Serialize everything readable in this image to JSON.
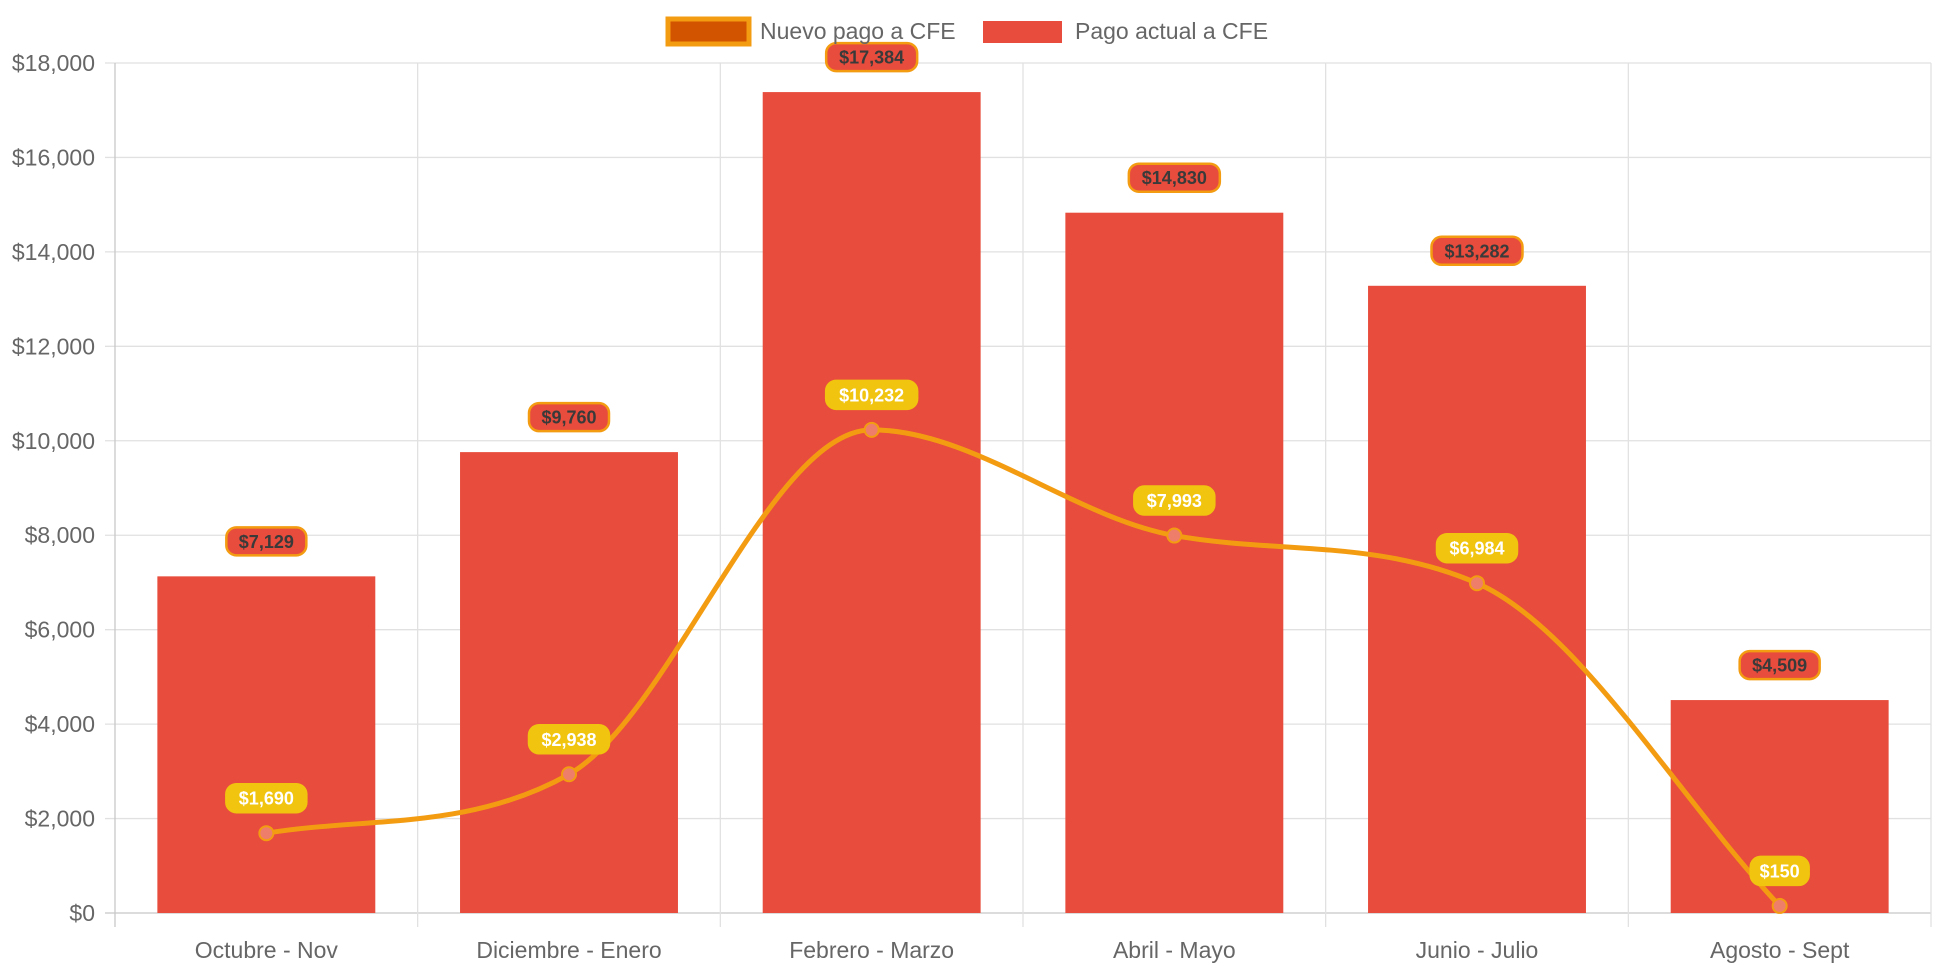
{
  "chart_data": {
    "type": "bar",
    "categories": [
      "Octubre - Nov",
      "Diciembre - Enero",
      "Febrero - Marzo",
      "Abril - Mayo",
      "Junio - Julio",
      "Agosto - Sept"
    ],
    "series": [
      {
        "name": "Nuevo pago a CFE",
        "type": "line",
        "values": [
          1690,
          2938,
          10232,
          7993,
          6984,
          150
        ],
        "labels": [
          "$1,690",
          "$2,938",
          "$10,232",
          "$7,993",
          "$6,984",
          "$150"
        ],
        "color": "#f39c12",
        "point_color": "#ee7d6a",
        "label_bg": "#f1c40f"
      },
      {
        "name": "Pago actual a CFE",
        "type": "bar",
        "values": [
          7129,
          9760,
          17384,
          14830,
          13282,
          4509
        ],
        "labels": [
          "$7,129",
          "$9,760",
          "$17,384",
          "$14,830",
          "$13,282",
          "$4,509"
        ],
        "color": "#e74c3c",
        "label_border": "#f39c12"
      }
    ],
    "ylim": [
      0,
      18000
    ],
    "yticks": [
      "$0",
      "$2,000",
      "$4,000",
      "$6,000",
      "$8,000",
      "$10,000",
      "$12,000",
      "$14,000",
      "$16,000",
      "$18,000"
    ],
    "grid": true,
    "legend_position": "top",
    "legend_swatch_line_fill": "#d35400",
    "title": "",
    "xlabel": "",
    "ylabel": ""
  }
}
